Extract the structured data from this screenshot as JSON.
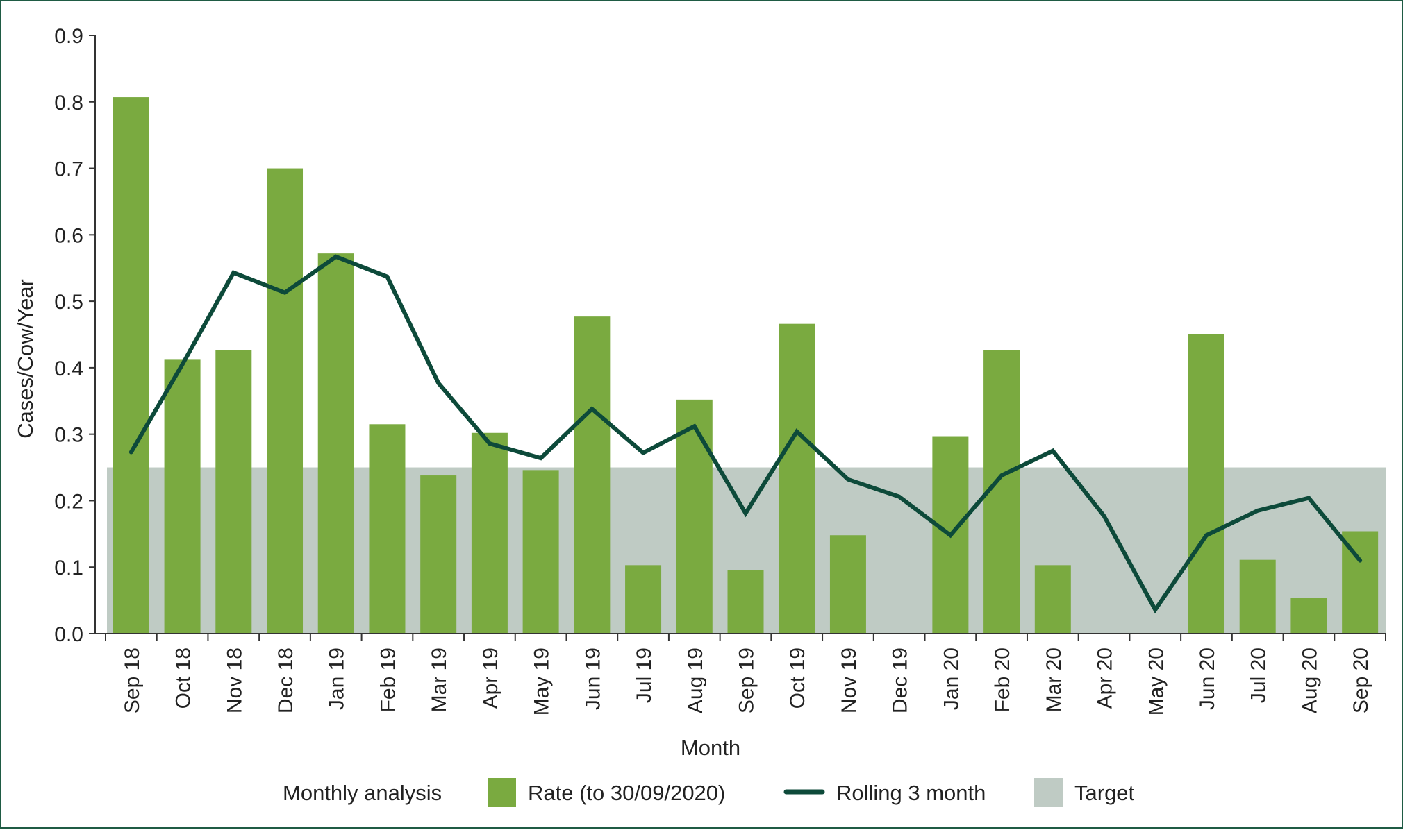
{
  "colors": {
    "bar": "#7aaa40",
    "line": "#0d4a3a",
    "target": "#bfcbc4",
    "axis": "#333333",
    "frame": "#1f5b44"
  },
  "chart_data": {
    "type": "bar",
    "title": "",
    "xlabel": "Month",
    "ylabel": "Cases/Cow/Year",
    "ylim": [
      0,
      0.9
    ],
    "yticks": [
      "0.0",
      "0.1",
      "0.2",
      "0.3",
      "0.4",
      "0.5",
      "0.6",
      "0.7",
      "0.8",
      "0.9"
    ],
    "grid": false,
    "legend_position": "bottom",
    "legend_title": "Monthly analysis",
    "categories": [
      "Sep 18",
      "Oct 18",
      "Nov 18",
      "Dec 18",
      "Jan 19",
      "Feb 19",
      "Mar 19",
      "Apr 19",
      "May 19",
      "Jun 19",
      "Jul 19",
      "Aug 19",
      "Sep 19",
      "Oct 19",
      "Nov 19",
      "Dec 19",
      "Jan 20",
      "Feb 20",
      "Mar 20",
      "Apr 20",
      "May 20",
      "Jun 20",
      "Jul 20",
      "Aug 20",
      "Sep 20"
    ],
    "series": [
      {
        "name": "Rate (to 30/09/2020)",
        "type": "bar",
        "values": [
          0.807,
          0.412,
          0.426,
          0.7,
          0.572,
          0.315,
          0.238,
          0.302,
          0.246,
          0.477,
          0.103,
          0.352,
          0.095,
          0.466,
          0.148,
          0.0,
          0.297,
          0.426,
          0.103,
          0.0,
          0.0,
          0.451,
          0.111,
          0.054,
          0.154
        ]
      },
      {
        "name": "Rolling 3 month",
        "type": "line",
        "values": [
          0.273,
          0.405,
          0.543,
          0.513,
          0.567,
          0.537,
          0.377,
          0.286,
          0.264,
          0.338,
          0.272,
          0.312,
          0.181,
          0.304,
          0.232,
          0.206,
          0.148,
          0.238,
          0.275,
          0.177,
          0.036,
          0.148,
          0.185,
          0.204,
          0.11
        ]
      },
      {
        "name": "Target",
        "type": "area",
        "value": 0.25
      }
    ]
  }
}
